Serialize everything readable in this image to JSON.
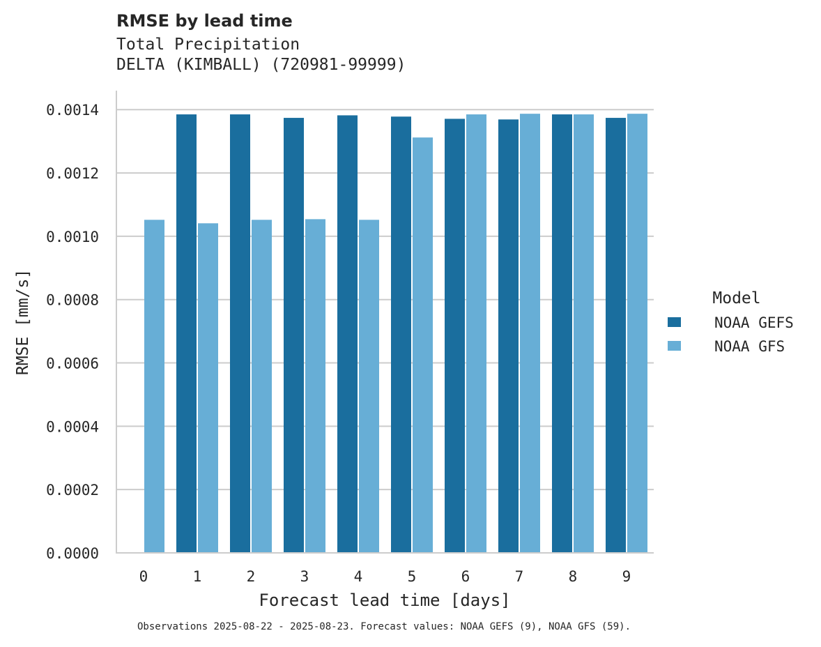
{
  "chart_data": {
    "type": "bar",
    "title": "RMSE by lead time",
    "subtitle_lines": [
      "Total Precipitation",
      "DELTA (KIMBALL) (720981-99999)"
    ],
    "xlabel": "Forecast lead time [days]",
    "ylabel": "RMSE [mm/s]",
    "categories": [
      "0",
      "1",
      "2",
      "3",
      "4",
      "5",
      "6",
      "7",
      "8",
      "9"
    ],
    "ylim": [
      0,
      0.00146
    ],
    "yticks": [
      "0.0000",
      "0.0002",
      "0.0004",
      "0.0006",
      "0.0008",
      "0.0010",
      "0.0012",
      "0.0014"
    ],
    "ytick_values": [
      0,
      0.0002,
      0.0004,
      0.0006,
      0.0008,
      0.001,
      0.0012,
      0.0014
    ],
    "grid": "horizontal",
    "legend": {
      "title": "Model",
      "placement": "right"
    },
    "series": [
      {
        "name": "NOAA GEFS",
        "color": "#1a6e9e",
        "values": [
          null,
          0.001385,
          0.001385,
          0.001374,
          0.001382,
          0.001378,
          0.001371,
          0.001369,
          0.001385,
          0.001374
        ]
      },
      {
        "name": "NOAA GFS",
        "color": "#67aed6",
        "values": [
          0.001052,
          0.001041,
          0.001052,
          0.001054,
          0.001052,
          0.001312,
          0.001385,
          0.001387,
          0.001385,
          0.001387
        ]
      }
    ],
    "caption": "Observations 2025-08-22 - 2025-08-23. Forecast values: NOAA GEFS (9), NOAA GFS (59)."
  }
}
